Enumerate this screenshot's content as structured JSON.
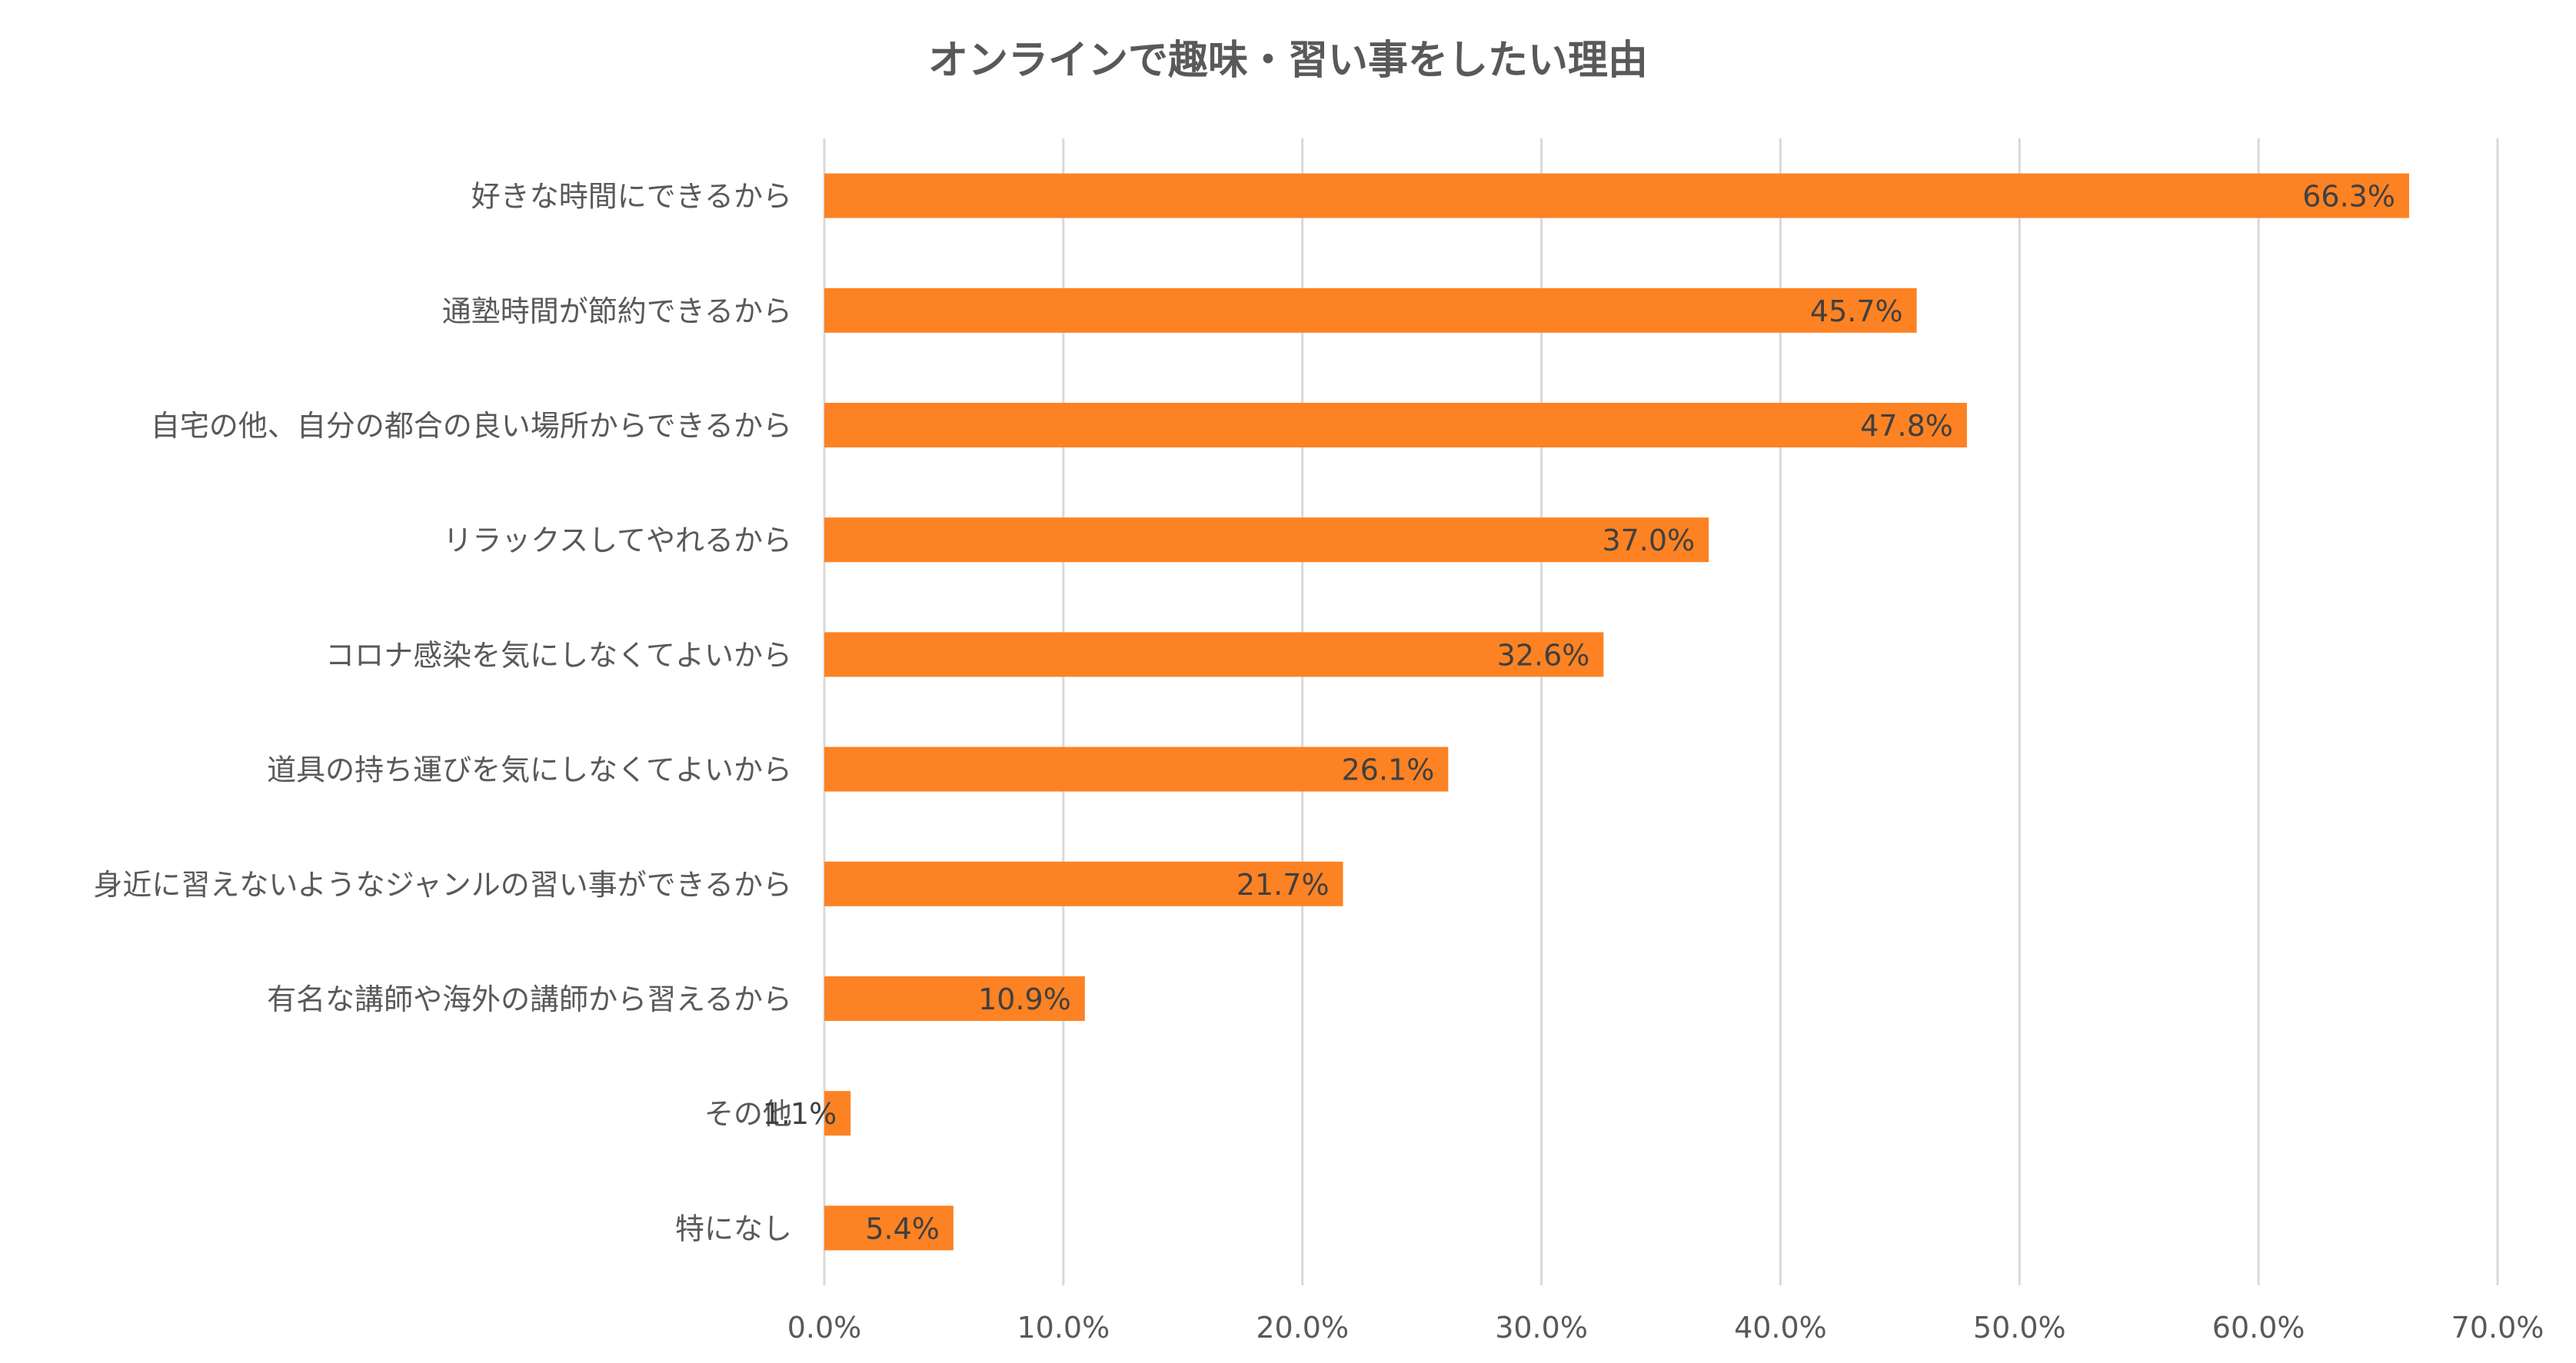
{
  "chart_data": {
    "type": "bar",
    "orientation": "horizontal",
    "title": "オンラインで趣味・習い事をしたい理由",
    "categories": [
      "好きな時間にできるから",
      "通塾時間が節約できるから",
      "自宅の他、自分の都合の良い場所からできるから",
      "リラックスしてやれるから",
      "コロナ感染を気にしなくてよいから",
      "道具の持ち運びを気にしなくてよいから",
      "身近に習えないようなジャンルの習い事ができるから",
      "有名な講師や海外の講師から習えるから",
      "その他",
      "特になし"
    ],
    "values": [
      66.3,
      45.7,
      47.8,
      37.0,
      32.6,
      26.1,
      21.7,
      10.9,
      1.1,
      5.4
    ],
    "data_labels": [
      "66.3%",
      "45.7%",
      "47.8%",
      "37.0%",
      "32.6%",
      "26.1%",
      "21.7%",
      "10.9%",
      "1.1%",
      "5.4%"
    ],
    "xlim": [
      0,
      70
    ],
    "xticks": [
      0,
      10,
      20,
      30,
      40,
      50,
      60,
      70
    ],
    "xtick_labels": [
      "0.0%",
      "10.0%",
      "20.0%",
      "30.0%",
      "40.0%",
      "50.0%",
      "60.0%",
      "70.0%"
    ],
    "xlabel": "",
    "ylabel": "",
    "grid": true,
    "legend": "none",
    "bar_color": "#FD8223",
    "grid_color": "#D9D9D9",
    "text_color": "#595959"
  }
}
